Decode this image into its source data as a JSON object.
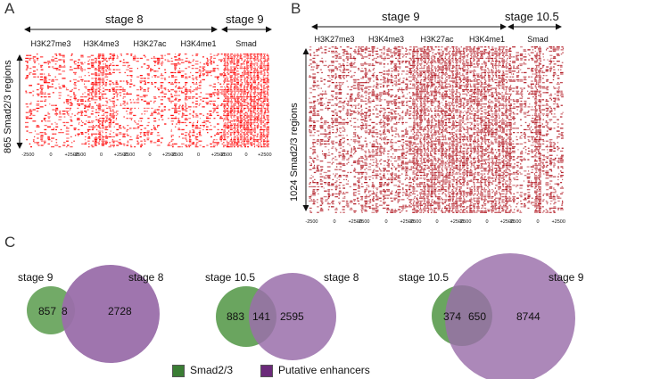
{
  "panels": {
    "A": {
      "letter": "A",
      "stage_left": "stage 8",
      "stage_right": "stage 9",
      "tracks": [
        "H3K27me3",
        "H3K4me3",
        "H3K27ac",
        "H3K4me1",
        "Smad"
      ],
      "ylabel": "865 Smad2/3 regions",
      "tick_groups": [
        [
          "-2500",
          "0",
          "+2500"
        ],
        [
          "-2500",
          "0",
          "+2500"
        ],
        [
          "-2500",
          "0",
          "+2500"
        ],
        [
          "-2500",
          "0",
          "+2500"
        ],
        [
          "-2500",
          "0",
          "+2500"
        ]
      ],
      "heat_color": "#ff0000"
    },
    "B": {
      "letter": "B",
      "stage_left": "stage 9",
      "stage_right": "stage 10.5",
      "tracks": [
        "H3K27me3",
        "H3K4me3",
        "H3K27ac",
        "H3K4me1",
        "Smad"
      ],
      "ylabel": "1024 Smad2/3 regions",
      "tick_groups": [
        [
          "-2500",
          "0",
          "+2500"
        ],
        [
          "-2500",
          "0",
          "+2500"
        ],
        [
          "-2500",
          "0",
          "+2500"
        ],
        [
          "-2500",
          "0",
          "+2500"
        ],
        [
          "-2500",
          "0",
          "+2500"
        ]
      ],
      "heat_color": "#b0141e"
    },
    "C": {
      "letter": "C",
      "venns": [
        {
          "left_label": "stage 9",
          "right_label": "stage 8",
          "only_left": "857",
          "overlap": "8",
          "only_right": "2728"
        },
        {
          "left_label": "stage 10.5",
          "right_label": "stage 8",
          "only_left": "883",
          "overlap": "141",
          "only_right": "2595"
        },
        {
          "left_label": "stage 10.5",
          "right_label": "stage 9",
          "only_left": "374",
          "overlap": "650",
          "only_right": "8744"
        }
      ],
      "legend": [
        {
          "label": "Smad2/3",
          "color": "#3a7d34"
        },
        {
          "label": "Putative enhancers",
          "color": "#6b2a7a"
        }
      ],
      "colors": {
        "green": "#6aa55f",
        "purple": "#9a6eaa"
      }
    }
  }
}
